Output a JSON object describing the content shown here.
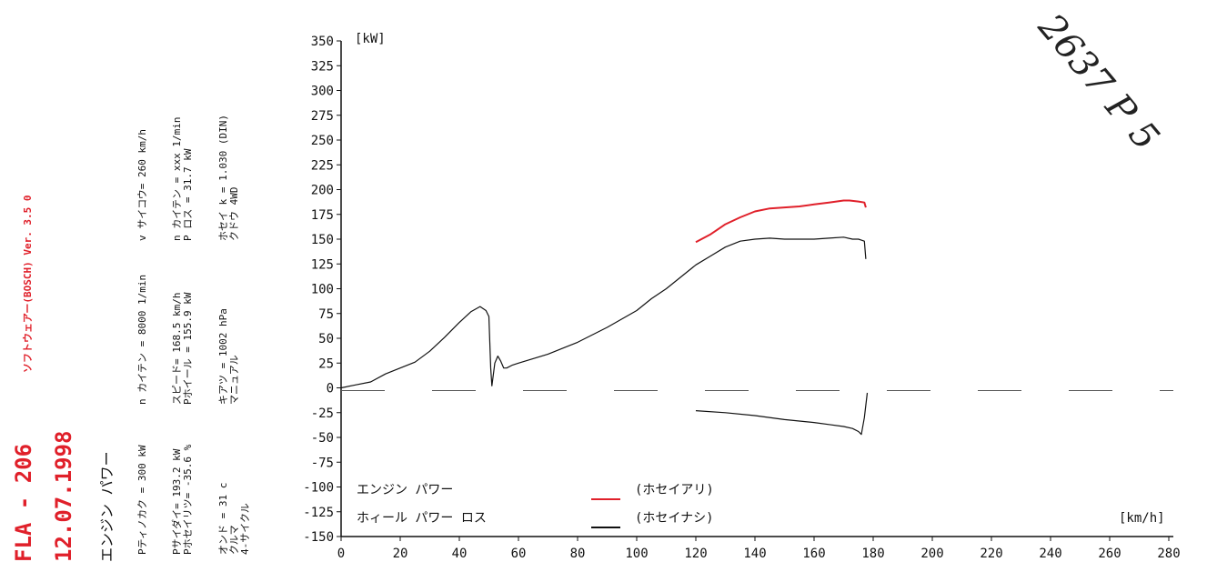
{
  "header": {
    "title": "FLA - 206",
    "date": "12.07.1998",
    "subtitle": "エンジン パワー",
    "software": "ソフトウェアー(BOSCH) Ver. 3.5 0"
  },
  "handwriting": "2637 P 5",
  "specs": [
    [
      "Pティノカク = 300 kW",
      "Pサイダイ= 193.2 kW",
      "Pホセイリツ= -35.6 %",
      "オンド = 31 c",
      "クルマ",
      "4-サイクル"
    ],
    [
      "n カイテン = 8000 1/min",
      "スピード= 168.5 km/h",
      "Pホイール = 155.9 kW",
      "キアツ = 1002 hPa",
      "マニュアル"
    ],
    [
      "v サイコウ= 260 km/h",
      "n カイテン = xxx 1/min",
      "P ロス = 31.7 kW",
      "ホセイ k = 1.030 (DIN)",
      "クドウ 4WD"
    ]
  ],
  "chart_data": {
    "type": "line",
    "xlabel": "[km/h]",
    "ylabel": "[kW]",
    "xlim": [
      0,
      280
    ],
    "ylim": [
      -150,
      350
    ],
    "x_ticks": [
      0,
      20,
      40,
      60,
      80,
      100,
      120,
      140,
      160,
      180,
      200,
      220,
      240,
      260,
      280
    ],
    "y_ticks": [
      350,
      325,
      300,
      275,
      250,
      225,
      200,
      175,
      150,
      125,
      100,
      75,
      50,
      25,
      0,
      -25,
      -50,
      -75,
      -100,
      -125,
      -150
    ],
    "legend": [
      {
        "label": "エンジン パワー",
        "tag": "(ホセイアリ)",
        "color": "#e0202a"
      },
      {
        "label": "ホィール パワー ロス",
        "tag": "(ホセイナシ)",
        "color": "#111111"
      }
    ],
    "series": [
      {
        "name": "エンジン パワー",
        "color": "#e0202a",
        "x": [
          120,
          125,
          130,
          135,
          140,
          145,
          150,
          155,
          160,
          165,
          170,
          172,
          175,
          177,
          177.5
        ],
        "y": [
          147,
          155,
          165,
          172,
          178,
          181,
          182,
          183,
          185,
          187,
          189,
          189,
          188,
          187,
          182
        ]
      },
      {
        "name": "ホィール パワー",
        "color": "#111111",
        "x": [
          0,
          5,
          10,
          15,
          20,
          25,
          30,
          35,
          40,
          44,
          47,
          49,
          50,
          50.6,
          51,
          52,
          53,
          54,
          55,
          56,
          58,
          60,
          70,
          80,
          90,
          100,
          105,
          110,
          115,
          120,
          125,
          130,
          135,
          140,
          145,
          150,
          155,
          160,
          165,
          170,
          173,
          175,
          176,
          177,
          177.5
        ],
        "y": [
          0,
          3,
          6,
          14,
          20,
          26,
          37,
          51,
          66,
          77,
          82,
          78,
          72,
          20,
          2,
          25,
          32,
          27,
          20,
          20,
          23,
          25,
          34,
          46,
          61,
          78,
          90,
          100,
          112,
          124,
          133,
          142,
          148,
          150,
          151,
          150,
          150,
          150,
          151,
          152,
          150,
          150,
          149,
          148,
          130
        ]
      },
      {
        "name": "ロス",
        "color": "#111111",
        "x": [
          120,
          130,
          140,
          150,
          160,
          165,
          170,
          173,
          175,
          176,
          177,
          178
        ],
        "y": [
          -23,
          -25,
          -28,
          -32,
          -35,
          -37,
          -39,
          -41,
          -44,
          -47,
          -30,
          -5
        ]
      }
    ]
  }
}
